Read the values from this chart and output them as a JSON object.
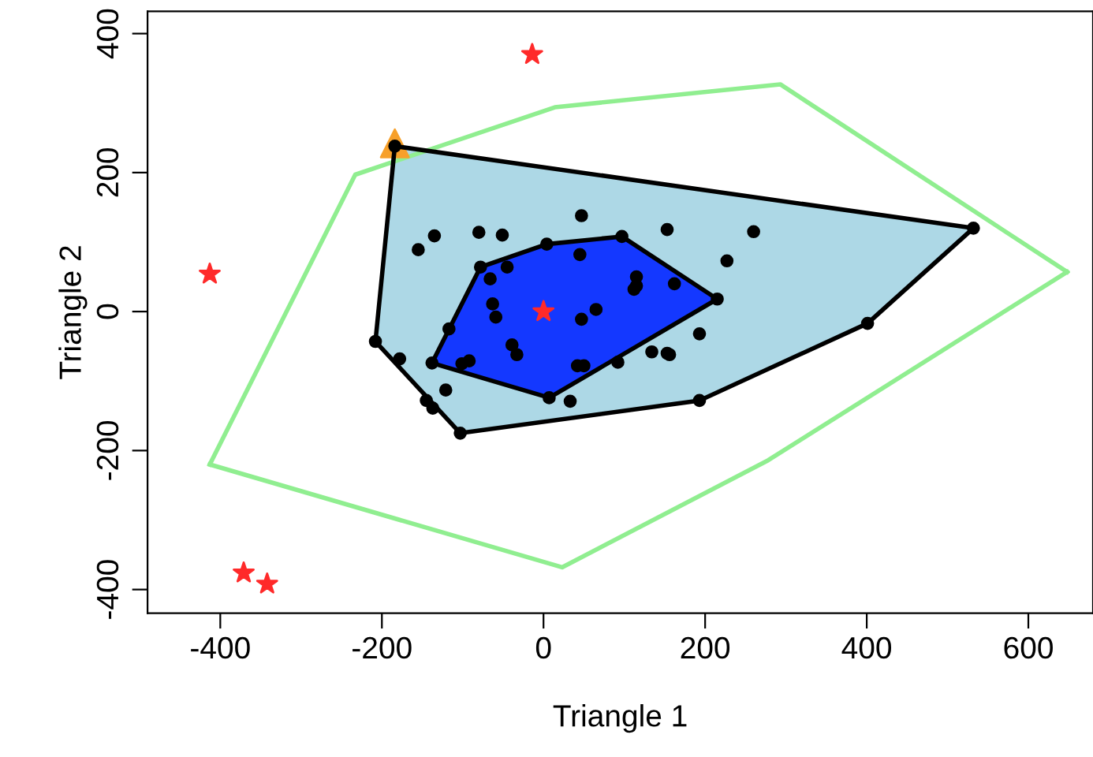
{
  "chart_data": {
    "type": "scatter",
    "xlabel": "Triangle 1",
    "ylabel": "Triangle 2",
    "xlim": [
      -490,
      680
    ],
    "ylim": [
      -434,
      432
    ],
    "xticks": [
      -400,
      -200,
      0,
      200,
      400,
      600
    ],
    "yticks": [
      -400,
      -200,
      0,
      200,
      400
    ],
    "grid": false,
    "legend": false,
    "series": [
      {
        "type": "line",
        "color": "#90ee90",
        "marker": "none",
        "x": [
          -413,
          -233,
          14,
          293,
          648
        ],
        "values": [
          -220,
          197,
          294,
          327,
          57
        ]
      },
      {
        "type": "line",
        "color": "#90ee90",
        "marker": "none",
        "x": [
          -413,
          23,
          278,
          648
        ],
        "values": [
          -220,
          -368,
          -214,
          57
        ]
      },
      {
        "type": "area",
        "color": "#add8e6",
        "marker": "circle",
        "x": [
          -184,
          532,
          401,
          193,
          -103,
          -208,
          -184
        ],
        "values": [
          238,
          120,
          -17,
          -128,
          -175,
          -43,
          238
        ]
      },
      {
        "type": "area",
        "color": "#1438ff",
        "marker": "circle",
        "x": [
          -78,
          4,
          97,
          215,
          7,
          -138,
          -78
        ],
        "values": [
          64,
          97,
          108,
          18,
          -124,
          -74,
          64
        ]
      },
      {
        "color": "#000000",
        "marker": "circle",
        "x": [
          47,
          -135,
          -80,
          -51,
          -155,
          153,
          260,
          227,
          45,
          -45,
          -66,
          115,
          112,
          115,
          162,
          -63,
          -59,
          65,
          47,
          -117,
          -178,
          -39,
          -33,
          -101,
          -92,
          42,
          50,
          92,
          134,
          153,
          156,
          193,
          -121,
          -145,
          -137,
          33
        ],
        "values": [
          138,
          109,
          114,
          110,
          89,
          118,
          115,
          73,
          82,
          64,
          47,
          50,
          32,
          37,
          40,
          11,
          -8,
          3,
          -11,
          -25,
          -68,
          -48,
          -62,
          -75,
          -71,
          -78,
          -78,
          -73,
          -58,
          -60,
          -62,
          -32,
          -113,
          -128,
          -139,
          -129
        ]
      },
      {
        "color": "#ff2a2a",
        "marker": "star",
        "x": [
          0,
          -14,
          -413,
          -371,
          -342
        ],
        "values": [
          0,
          370,
          54,
          -376,
          -392
        ]
      },
      {
        "color": "#f7a02a",
        "marker": "triangle",
        "x": [
          -184
        ],
        "values": [
          242
        ]
      }
    ]
  }
}
